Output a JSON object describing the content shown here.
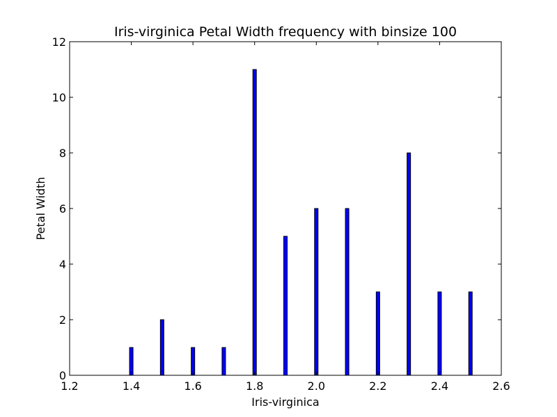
{
  "chart_data": {
    "type": "bar",
    "title": "Iris-virginica Petal Width frequency with binsize 100",
    "xlabel": "Iris-virginica",
    "ylabel": "Petal Width",
    "xlim": [
      1.2,
      2.6
    ],
    "ylim": [
      0,
      12
    ],
    "x_ticks": [
      "1.2",
      "1.4",
      "1.6",
      "1.8",
      "2.0",
      "2.2",
      "2.4",
      "2.6"
    ],
    "y_ticks": [
      "0",
      "2",
      "4",
      "6",
      "8",
      "10",
      "12"
    ],
    "grid": false,
    "bar_color": "#0000ff",
    "series": [
      {
        "x": [
          1.4,
          1.5,
          1.6,
          1.7,
          1.8,
          1.9,
          2.0,
          2.1,
          2.2,
          2.3,
          2.4,
          2.5
        ],
        "values": [
          1,
          2,
          1,
          1,
          11,
          5,
          6,
          6,
          3,
          8,
          3,
          3
        ]
      }
    ]
  }
}
